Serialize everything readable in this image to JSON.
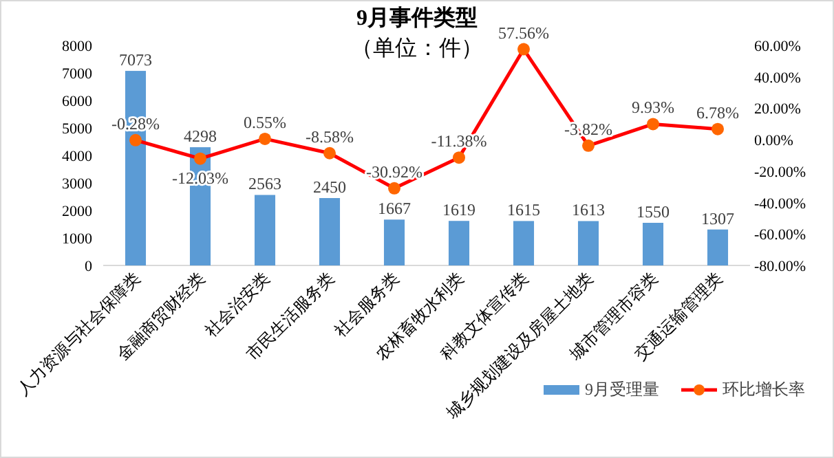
{
  "chart_data": {
    "type": "bar",
    "title": "9月事件类型",
    "subtitle": "（单位：件）",
    "categories": [
      "人力资源与社会保障类",
      "金融商贸财经类",
      "社会治安类",
      "市民生活服务类",
      "社会服务类",
      "农林畜牧水利类",
      "科教文体宣传类",
      "城乡规划建设及房屋土地类",
      "城市管理市容类",
      "交通运输管理类"
    ],
    "series": [
      {
        "name": "9月受理量",
        "color": "#5b9bd5",
        "values": [
          7073,
          4298,
          2563,
          2450,
          1667,
          1619,
          1615,
          1613,
          1550,
          1307
        ],
        "value_labels": [
          "7073",
          "4298",
          "2563",
          "2450",
          "1667",
          "1619",
          "1615",
          "1613",
          "1550",
          "1307"
        ]
      },
      {
        "name": "环比增长率",
        "type": "line",
        "axis": "y2",
        "color": "#ff0000",
        "marker": "circle",
        "values": [
          -0.28,
          -12.03,
          0.55,
          -8.58,
          -30.92,
          -11.38,
          57.56,
          -3.82,
          9.93,
          6.78
        ],
        "value_labels": [
          "-0.28%",
          "-12.03%",
          "0.55%",
          "-8.58%",
          "-30.92%",
          "-11.38%",
          "57.56%",
          "-3.82%",
          "9.93%",
          "6.78%"
        ]
      }
    ],
    "ylim": [
      0,
      8000
    ],
    "yticks": [
      0,
      1000,
      2000,
      3000,
      4000,
      5000,
      6000,
      7000,
      8000
    ],
    "y2lim": [
      -80,
      60
    ],
    "y2ticks": [
      {
        "value": -80,
        "label": "-80.00%"
      },
      {
        "value": -60,
        "label": "-60.00%"
      },
      {
        "value": -40,
        "label": "-40.00%"
      },
      {
        "value": -20,
        "label": "-20.00%"
      },
      {
        "value": 0,
        "label": "0.00%"
      },
      {
        "value": 20,
        "label": "20.00%"
      },
      {
        "value": 40,
        "label": "40.00%"
      },
      {
        "value": 60,
        "label": "60.00%"
      }
    ],
    "grid": false,
    "legend": "bottom right"
  }
}
